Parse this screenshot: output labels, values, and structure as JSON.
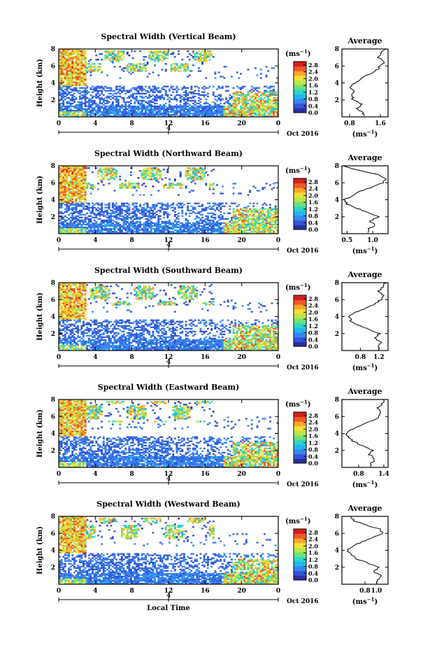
{
  "figure": {
    "date_label": "Oct 2016",
    "xlabel_bottom": "Local Time",
    "colorbar_unit": "(ms",
    "colorbar_unit_exp": "−1",
    "colorbar_unit_close": ")",
    "avg_unit": "(ms",
    "avg_unit_exp": "−1",
    "avg_unit_close": ")",
    "avg_title": "Average",
    "day_marker": "4",
    "colormap": [
      "#2b2f9e",
      "#3556d8",
      "#3a86f0",
      "#23b6ee",
      "#2fd6c4",
      "#6fe07a",
      "#b8e84a",
      "#f2e03a",
      "#f7a82a",
      "#f0582a",
      "#d4201e"
    ]
  },
  "chart_data": [
    {
      "type": "heatmap",
      "title": "Spectral Width (Vertical Beam)",
      "xlabel": "",
      "ylabel": "Height (km)",
      "x_ticks": [
        "0",
        "4",
        "8",
        "12",
        "16",
        "20",
        "0"
      ],
      "xlim": [
        0,
        24
      ],
      "y_ticks": [
        "2",
        "4",
        "6",
        "8"
      ],
      "ylim": [
        0,
        8
      ],
      "colorbar_ticks": [
        "0.0",
        "0.4",
        "0.8",
        "1.2",
        "1.6",
        "2.0",
        "2.4",
        "2.8"
      ],
      "colorbar_range": [
        0,
        3
      ],
      "avg_profile": {
        "xlim": [
          0.6,
          1.8
        ],
        "x_ticks": [
          "0.8",
          "1.6"
        ],
        "ylim": [
          0,
          8
        ],
        "y_ticks": [
          "2",
          "4",
          "6",
          "8"
        ],
        "heights": [
          0.5,
          1,
          1.5,
          2,
          2.5,
          3,
          3.5,
          4,
          4.5,
          5,
          5.5,
          6,
          6.5,
          7,
          7.5,
          8
        ],
        "values": [
          1.15,
          1.0,
          1.1,
          0.9,
          0.85,
          0.9,
          0.8,
          0.95,
          1.1,
          1.3,
          1.5,
          1.6,
          1.7,
          1.55,
          1.6,
          1.7
        ]
      }
    },
    {
      "type": "heatmap",
      "title": "Spectral Width (Northward Beam)",
      "xlabel": "",
      "ylabel": "Height (km)",
      "x_ticks": [
        "0",
        "4",
        "8",
        "12",
        "16",
        "20",
        "0"
      ],
      "xlim": [
        0,
        24
      ],
      "y_ticks": [
        "2",
        "4",
        "6",
        "8"
      ],
      "ylim": [
        0,
        8
      ],
      "colorbar_ticks": [
        "0.0",
        "0.4",
        "0.8",
        "1.2",
        "1.6",
        "2.0",
        "2.4",
        "2.8"
      ],
      "colorbar_range": [
        0,
        3
      ],
      "avg_profile": {
        "xlim": [
          0.4,
          1.3
        ],
        "x_ticks": [
          "0.5",
          "1.0"
        ],
        "ylim": [
          0,
          8
        ],
        "y_ticks": [
          "2",
          "4",
          "6",
          "8"
        ],
        "heights": [
          0.5,
          1,
          1.5,
          2,
          2.5,
          3,
          3.5,
          4,
          4.5,
          5,
          5.5,
          6,
          6.5,
          7,
          7.5,
          8
        ],
        "values": [
          0.9,
          1.05,
          0.95,
          1.1,
          0.9,
          0.7,
          0.5,
          0.45,
          0.6,
          0.75,
          1.0,
          1.2,
          1.25,
          1.1,
          0.7,
          0.45
        ]
      }
    },
    {
      "type": "heatmap",
      "title": "Spectral Width (Southward Beam)",
      "xlabel": "",
      "ylabel": "Height (km)",
      "x_ticks": [
        "0",
        "4",
        "8",
        "12",
        "16",
        "20",
        "0"
      ],
      "xlim": [
        0,
        24
      ],
      "y_ticks": [
        "2",
        "4",
        "6",
        "8"
      ],
      "ylim": [
        0,
        8
      ],
      "colorbar_ticks": [
        "0.0",
        "0.4",
        "0.8",
        "1.2",
        "1.6",
        "2.0",
        "2.4",
        "2.8"
      ],
      "colorbar_range": [
        0,
        3
      ],
      "avg_profile": {
        "xlim": [
          0.4,
          1.4
        ],
        "x_ticks": [
          "0.8",
          "1.2"
        ],
        "ylim": [
          0,
          8
        ],
        "y_ticks": [
          "2",
          "4",
          "6",
          "8"
        ],
        "heights": [
          0.5,
          1,
          1.5,
          2,
          2.5,
          3,
          3.5,
          4,
          4.5,
          5,
          5.5,
          6,
          6.5,
          7,
          7.5,
          8
        ],
        "values": [
          1.2,
          1.25,
          1.1,
          1.2,
          1.0,
          0.75,
          0.6,
          0.55,
          0.7,
          0.9,
          1.1,
          1.25,
          1.3,
          1.2,
          1.3,
          1.35
        ]
      }
    },
    {
      "type": "heatmap",
      "title": "Spectral Width (Eastward Beam)",
      "xlabel": "",
      "ylabel": "Height (km)",
      "x_ticks": [
        "0",
        "4",
        "8",
        "12",
        "16",
        "20",
        "0"
      ],
      "xlim": [
        0,
        24
      ],
      "y_ticks": [
        "2",
        "4",
        "6",
        "8"
      ],
      "ylim": [
        0,
        8
      ],
      "colorbar_ticks": [
        "0.0",
        "0.4",
        "0.8",
        "1.2",
        "1.6",
        "2.0",
        "2.4",
        "2.8"
      ],
      "colorbar_range": [
        0,
        3
      ],
      "avg_profile": {
        "xlim": [
          0.4,
          1.5
        ],
        "x_ticks": [
          "0.8",
          "1.4"
        ],
        "ylim": [
          0,
          8
        ],
        "y_ticks": [
          "2",
          "4",
          "6",
          "8"
        ],
        "heights": [
          0.5,
          1,
          1.5,
          2,
          2.5,
          3,
          3.5,
          4,
          4.5,
          5,
          5.5,
          6,
          6.5,
          7,
          7.5,
          8
        ],
        "values": [
          1.1,
          1.2,
          1.05,
          1.15,
          0.9,
          0.7,
          0.55,
          0.5,
          0.65,
          0.85,
          1.1,
          1.3,
          1.35,
          1.25,
          1.35,
          1.4
        ]
      }
    },
    {
      "type": "heatmap",
      "title": "Spectral Width (Westward Beam)",
      "xlabel": "Local Time",
      "ylabel": "Height (km)",
      "x_ticks": [
        "0",
        "4",
        "8",
        "12",
        "16",
        "20",
        "0"
      ],
      "xlim": [
        0,
        24
      ],
      "y_ticks": [
        "2",
        "4",
        "6",
        "8"
      ],
      "ylim": [
        0,
        8
      ],
      "colorbar_ticks": [
        "0.0",
        "0.4",
        "0.8",
        "1.2",
        "1.6",
        "2.0",
        "2.4",
        "2.8"
      ],
      "colorbar_range": [
        0,
        3
      ],
      "avg_profile": {
        "xlim": [
          0.4,
          1.2
        ],
        "x_ticks": [
          "0.8",
          "1.0"
        ],
        "ylim": [
          0,
          8
        ],
        "y_ticks": [
          "2",
          "4",
          "6",
          "8"
        ],
        "heights": [
          0.5,
          1,
          1.5,
          2,
          2.5,
          3,
          3.5,
          4,
          4.5,
          5,
          5.5,
          6,
          6.5,
          7,
          7.5,
          8
        ],
        "values": [
          1.0,
          1.1,
          0.95,
          1.05,
          0.85,
          0.65,
          0.55,
          0.5,
          0.6,
          0.75,
          0.95,
          1.1,
          1.05,
          0.8,
          0.6,
          0.55
        ]
      }
    }
  ]
}
